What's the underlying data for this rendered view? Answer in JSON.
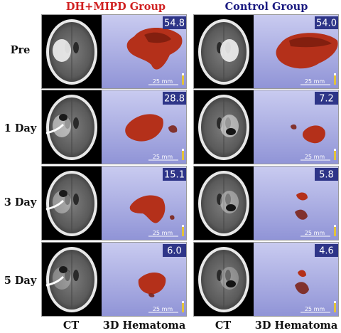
{
  "groups": [
    {
      "title": "DH+MIPD Group",
      "color": "#d02020"
    },
    {
      "title": "Control Group",
      "color": "#1a1a80"
    }
  ],
  "rows": [
    {
      "label": "Pre",
      "values": [
        "54.8",
        "54.0"
      ]
    },
    {
      "label": "1 Day",
      "values": [
        "28.8",
        "7.2"
      ]
    },
    {
      "label": "3 Day",
      "values": [
        "15.1",
        "5.8"
      ]
    },
    {
      "label": "5 Day",
      "values": [
        "6.0",
        "4.6"
      ]
    }
  ],
  "scale_label": "25 mm",
  "columns": [
    "CT",
    "3D Hematoma",
    "CT",
    "3D Hematoma"
  ],
  "colors": {
    "hematoma": "#b4301a",
    "hematoma_dark": "#7a1c0e",
    "render_bg_top": "#c9cbf0",
    "render_bg_bottom": "#8f93d6",
    "badge_bg": "#2e3588",
    "ct_bg": "#000000"
  }
}
